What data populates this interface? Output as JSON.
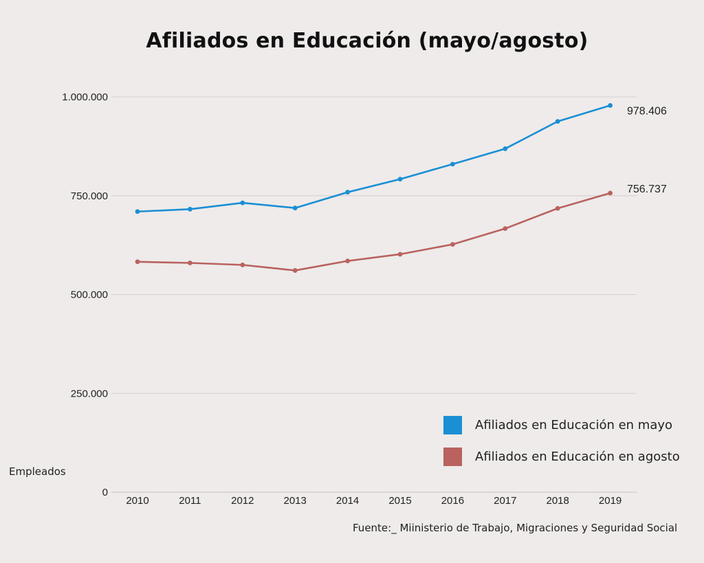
{
  "title": "Afiliados en Educación (mayo/agosto)",
  "source": "Fuente:_ Miinisterio de Trabajo, Migraciones y Seguridad Social",
  "chart_data": {
    "type": "line",
    "title": "Afiliados en Educación (mayo/agosto)",
    "xlabel": "",
    "ylabel": "Empleados",
    "x": [
      "2010",
      "2011",
      "2012",
      "2013",
      "2014",
      "2015",
      "2016",
      "2017",
      "2018",
      "2019"
    ],
    "ylim": [
      0,
      1000000
    ],
    "yticks": [
      0,
      250000,
      500000,
      750000,
      1000000
    ],
    "ytick_labels": [
      "0",
      "250.000",
      "500.000",
      "750.000",
      "1.000.000"
    ],
    "grid": "horizontal",
    "legend_position": "bottom-right",
    "series": [
      {
        "name": "Afiliados en Educación en mayo",
        "color": "#1a8fd4",
        "values": [
          710000,
          716000,
          732000,
          719000,
          759000,
          792000,
          830000,
          869000,
          938000,
          978406
        ],
        "end_label": "978.406"
      },
      {
        "name": "Afiliados en Educación en agosto",
        "color": "#b9625f",
        "values": [
          583000,
          580000,
          575000,
          561000,
          585000,
          602000,
          627000,
          667000,
          718000,
          756737
        ],
        "end_label": "756.737"
      }
    ]
  }
}
